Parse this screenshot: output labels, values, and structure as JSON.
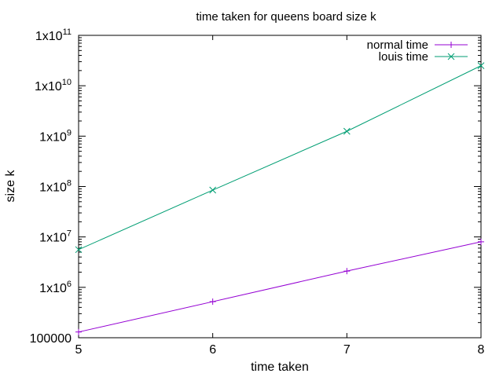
{
  "chart_data": {
    "type": "line",
    "title": "time taken for queens board size k",
    "xlabel": "time taken",
    "ylabel": "size k",
    "xlim": [
      5,
      8
    ],
    "ylim": [
      100000,
      100000000000
    ],
    "yscale": "log",
    "grid": false,
    "legend_position": "top-right",
    "x_ticks": [
      {
        "value": 5,
        "label": "5"
      },
      {
        "value": 6,
        "label": "6"
      },
      {
        "value": 7,
        "label": "7"
      },
      {
        "value": 8,
        "label": "8"
      }
    ],
    "y_ticks": [
      {
        "value": 100000,
        "label": "100000"
      },
      {
        "value": 1000000,
        "label": "1x10",
        "sup": "6"
      },
      {
        "value": 10000000,
        "label": "1x10",
        "sup": "7"
      },
      {
        "value": 100000000,
        "label": "1x10",
        "sup": "8"
      },
      {
        "value": 1000000000,
        "label": "1x10",
        "sup": "9"
      },
      {
        "value": 10000000000,
        "label": "1x10",
        "sup": "10"
      },
      {
        "value": 100000000000,
        "label": "1x10",
        "sup": "11"
      }
    ],
    "series": [
      {
        "name": "normal time",
        "color": "#9400d3",
        "marker": "plus",
        "points": [
          {
            "x": 5,
            "y": 130000
          },
          {
            "x": 6,
            "y": 520000
          },
          {
            "x": 7,
            "y": 2100000
          },
          {
            "x": 8,
            "y": 8000000
          }
        ]
      },
      {
        "name": "louis time",
        "color": "#009e73",
        "marker": "cross",
        "points": [
          {
            "x": 5,
            "y": 5600000
          },
          {
            "x": 6,
            "y": 85000000
          },
          {
            "x": 7,
            "y": 1250000000
          },
          {
            "x": 8,
            "y": 25000000000
          }
        ]
      }
    ]
  }
}
